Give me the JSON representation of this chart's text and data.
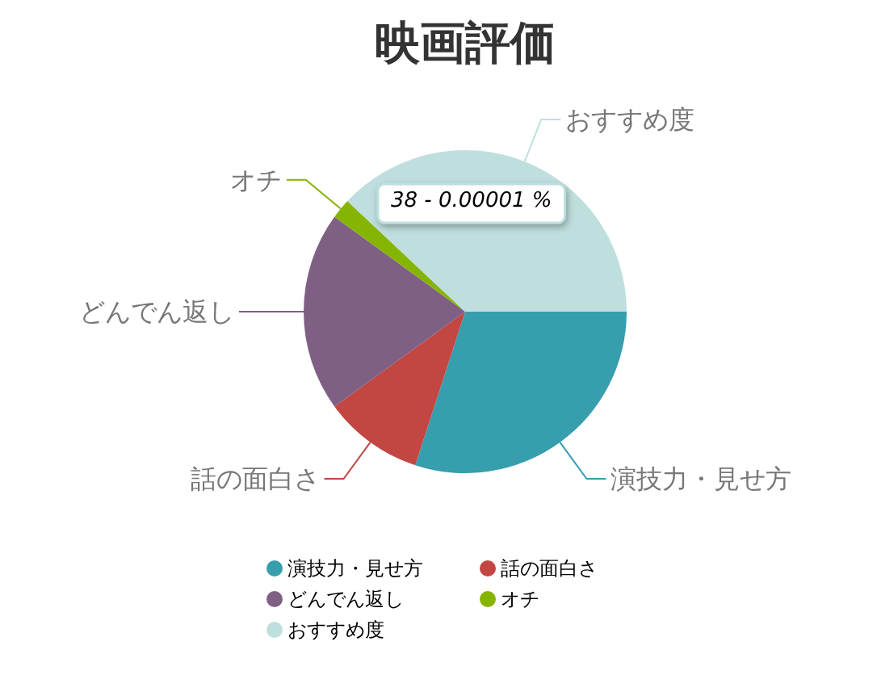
{
  "chart_data": {
    "type": "pie",
    "title": "映画評価",
    "categories": [
      "演技力・見せ方",
      "話の面白さ",
      "どんでん返し",
      "オチ",
      "おすすめ度"
    ],
    "values": [
      30,
      10,
      20,
      2,
      38
    ],
    "colors": [
      "#369ead",
      "#c24642",
      "#7f6084",
      "#86b402",
      "#bfdfde"
    ],
    "annotations": [
      "38 - 0.00001 %"
    ],
    "legend": "bottom"
  }
}
